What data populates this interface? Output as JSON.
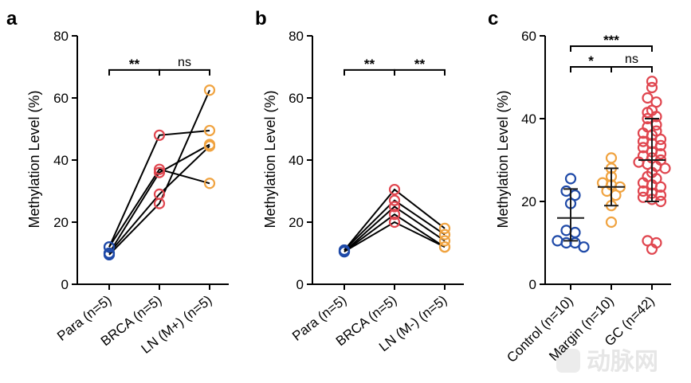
{
  "colors": {
    "para": "#1f4aa8",
    "brca": "#e0464f",
    "ln": "#f0a340",
    "control": "#1f4aa8",
    "margin": "#f0a340",
    "gc": "#e0464f"
  },
  "watermark": {
    "text": "动脉网",
    "icon": "logo-icon"
  },
  "chart_data": [
    {
      "panel": "a",
      "type": "scatter",
      "paired": true,
      "ylabel": "Methylation Level (%)",
      "ylim": [
        0,
        80
      ],
      "yticks": [
        0,
        20,
        40,
        60,
        80
      ],
      "categories": [
        "Para (n=5)",
        "BRCA (n=5)",
        "LN (M+) (n=5)"
      ],
      "pairs": [
        [
          12,
          48,
          49.5
        ],
        [
          12,
          37,
          32.5
        ],
        [
          10,
          36,
          45
        ],
        [
          10,
          29,
          44.5
        ],
        [
          9.5,
          26,
          62.5
        ]
      ],
      "significance": [
        {
          "from": 0,
          "to": 1,
          "label": "**",
          "level": 69
        },
        {
          "from": 1,
          "to": 2,
          "label": "ns",
          "level": 69
        }
      ]
    },
    {
      "panel": "b",
      "type": "scatter",
      "paired": true,
      "ylabel": "Methylation Level (%)",
      "ylim": [
        0,
        80
      ],
      "yticks": [
        0,
        20,
        40,
        60,
        80
      ],
      "categories": [
        "Para (n=5)",
        "BRCA (n=5)",
        "LN (M-) (n=5)"
      ],
      "pairs": [
        [
          11,
          30.5,
          18
        ],
        [
          11,
          27,
          16
        ],
        [
          10.5,
          25,
          14
        ],
        [
          10.5,
          22.5,
          12
        ],
        [
          10.5,
          20,
          12
        ]
      ],
      "significance": [
        {
          "from": 0,
          "to": 1,
          "label": "**",
          "level": 69
        },
        {
          "from": 1,
          "to": 2,
          "label": "**",
          "level": 69
        }
      ]
    },
    {
      "panel": "c",
      "type": "scatter",
      "paired": false,
      "ylabel": "Methylation Level (%)",
      "ylim": [
        0,
        60
      ],
      "yticks": [
        0,
        20,
        40,
        60
      ],
      "categories": [
        "Control (n=10)",
        "Margin (n=10)",
        "GC (n=42)"
      ],
      "groups": [
        {
          "name": "Control (n=10)",
          "values": [
            25.5,
            22.5,
            21.5,
            19.5,
            13,
            12.5,
            10.5,
            10,
            10,
            9
          ],
          "mean": 16,
          "sd": [
            10.5,
            23
          ]
        },
        {
          "name": "Margin (n=10)",
          "values": [
            30.5,
            28,
            26,
            24.5,
            24,
            23.5,
            22.5,
            21.5,
            19,
            15
          ],
          "mean": 23.5,
          "sd": [
            19,
            28
          ]
        },
        {
          "name": "GC (n=42)",
          "values": [
            49,
            47.5,
            45,
            44,
            42,
            41.5,
            40.5,
            40,
            38.5,
            38,
            37,
            36.5,
            36,
            35,
            34.5,
            34,
            33.5,
            33,
            32,
            31.5,
            31,
            30.5,
            30,
            29.5,
            29,
            28.5,
            28,
            27,
            26,
            25.5,
            24.5,
            24,
            23.5,
            22.5,
            22,
            21.5,
            21,
            20.5,
            20,
            10.5,
            10,
            8.5
          ],
          "mean": 30,
          "sd": [
            20,
            40
          ]
        }
      ],
      "significance": [
        {
          "from": 0,
          "to": 1,
          "label": "*",
          "level": 52.5
        },
        {
          "from": 1,
          "to": 2,
          "label": "ns",
          "level": 52.5
        },
        {
          "from": 0,
          "to": 2,
          "label": "***",
          "level": 57.5
        }
      ]
    }
  ]
}
